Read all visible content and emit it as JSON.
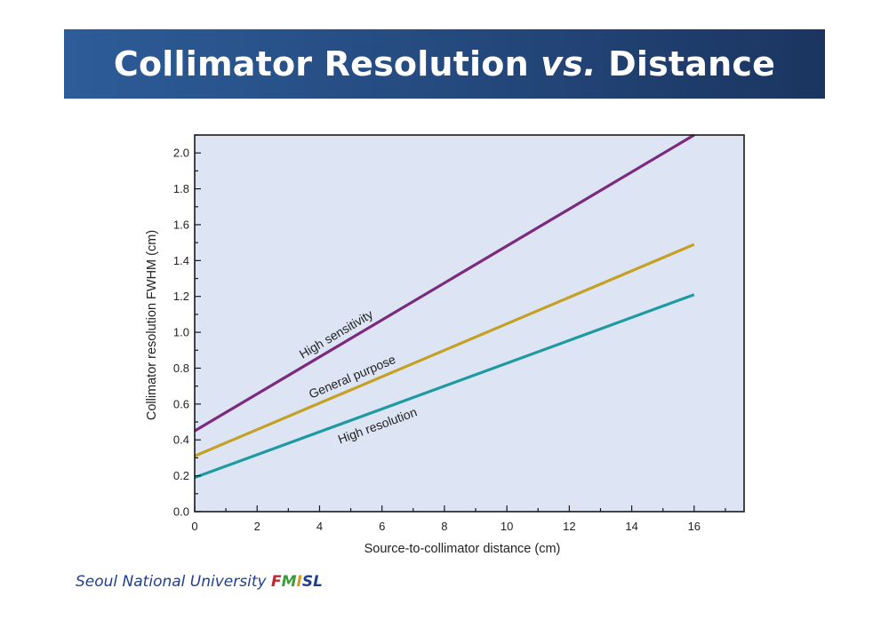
{
  "slide": {
    "title_part1": "Collimator Resolution ",
    "title_italic": "vs.",
    "title_part2": " Distance"
  },
  "footer": {
    "text": "Seoul National University ",
    "brand_letters": [
      {
        "char": "F",
        "color": "#c0272d"
      },
      {
        "char": "M",
        "color": "#3a9b3a"
      },
      {
        "char": "I",
        "color": "#d69a1c"
      },
      {
        "char": "S",
        "color": "#1f3f8f"
      },
      {
        "char": "L",
        "color": "#1f3f8f"
      }
    ]
  },
  "chart_data": {
    "type": "line",
    "title": "",
    "xlabel": "Source-to-collimator distance (cm)",
    "ylabel": "Collimator resolution FWHM (cm)",
    "xlim": [
      0,
      17.6
    ],
    "ylim": [
      0,
      2.1
    ],
    "xticks_labeled": [
      0,
      2,
      4,
      6,
      8,
      10,
      12,
      14,
      16
    ],
    "xtick_labels": [
      "0",
      "2",
      "4",
      "6",
      "8",
      "10",
      "12",
      "14",
      "16"
    ],
    "yticks_labeled": [
      0.0,
      0.2,
      0.4,
      0.6,
      0.8,
      1.0,
      1.2,
      1.4,
      1.6,
      1.8,
      2.0
    ],
    "ytick_labels": [
      "0.0",
      "0.2",
      "0.4",
      "0.6",
      "0.8",
      "1.0",
      "1.2",
      "1.4",
      "1.6",
      "1.8",
      "2.0"
    ],
    "grid": false,
    "background_color": "#dde5f4",
    "series": [
      {
        "name": "High sensitivity",
        "x": [
          0,
          16.0
        ],
        "y": [
          0.45,
          2.1
        ],
        "color": "#7b2a7e",
        "label_at_x": 4.6
      },
      {
        "name": "General purpose",
        "x": [
          0,
          16
        ],
        "y": [
          0.31,
          1.49
        ],
        "color": "#c4a124",
        "label_at_x": 5.1
      },
      {
        "name": "High resolution",
        "x": [
          0,
          16
        ],
        "y": [
          0.19,
          1.21
        ],
        "color": "#1f9aa0",
        "label_at_x": 5.9
      }
    ]
  }
}
